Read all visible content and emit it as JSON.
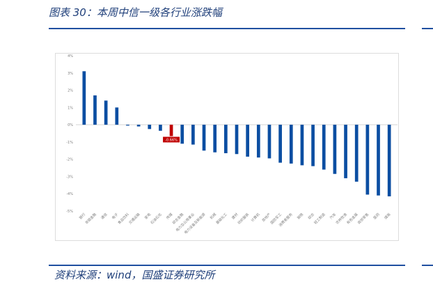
{
  "header": {
    "title": "图表 30：本周中信一级各行业涨跌幅"
  },
  "footer": {
    "source": "资料来源：wind，国盛证券研究所"
  },
  "colors": {
    "bar": "#0b4ea2",
    "highlight": "#c00000",
    "grid": "#e6e6e6",
    "axis": "#bbbbbb",
    "tick": "#7f7f7f"
  },
  "chart_data": {
    "type": "bar",
    "categories": [
      "银行",
      "非银金融",
      "通信",
      "电子",
      "食品饮料",
      "交通运输",
      "家电",
      "石油石化",
      "传媒",
      "综合金融",
      "电力及公用事业",
      "电力设备及新能源",
      "机械",
      "基础化工",
      "建材",
      "纺织服装",
      "计算机",
      "房地产",
      "国防军工",
      "消费者服务",
      "钢铁",
      "综合",
      "轻工制造",
      "汽车",
      "农林牧渔",
      "有色金属",
      "商贸零售",
      "医药",
      "煤炭"
    ],
    "values": [
      3.1,
      1.7,
      1.4,
      1.0,
      -0.05,
      -0.1,
      -0.25,
      -0.35,
      -0.66,
      -1.1,
      -1.15,
      -1.5,
      -1.6,
      -1.65,
      -1.7,
      -1.85,
      -1.9,
      -1.95,
      -2.2,
      -2.25,
      -2.35,
      -2.4,
      -2.6,
      -2.85,
      -3.1,
      -3.3,
      -4.05,
      -4.1,
      -4.15
    ],
    "highlight_index": 8,
    "highlight_label": "-0.66%",
    "y_ticks": [
      "4%",
      "3%",
      "2%",
      "1%",
      "0%",
      "-1%",
      "-2%",
      "-3%",
      "-4%",
      "-5%"
    ],
    "ylim": [
      -5,
      4
    ],
    "grid": false,
    "unit": "%"
  }
}
